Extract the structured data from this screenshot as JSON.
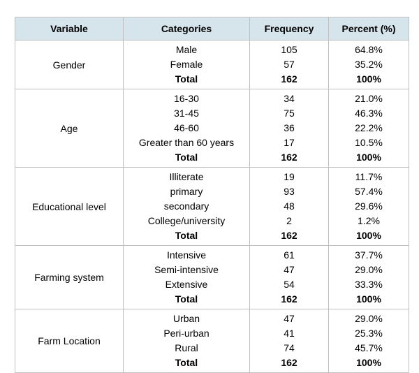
{
  "table": {
    "headers": [
      "Variable",
      "Categories",
      "Frequency",
      "Percent (%)"
    ],
    "groups": [
      {
        "variable": "Gender",
        "rows": [
          {
            "category": "Male",
            "frequency": "105",
            "percent": "64.8%"
          },
          {
            "category": "Female",
            "frequency": "57",
            "percent": "35.2%"
          },
          {
            "category": "Total",
            "frequency": "162",
            "percent": "100%",
            "total": true
          }
        ]
      },
      {
        "variable": "Age",
        "rows": [
          {
            "category": "16-30",
            "frequency": "34",
            "percent": "21.0%"
          },
          {
            "category": "31-45",
            "frequency": "75",
            "percent": "46.3%"
          },
          {
            "category": "46-60",
            "frequency": "36",
            "percent": "22.2%"
          },
          {
            "category": "Greater than 60 years",
            "frequency": "17",
            "percent": "10.5%"
          },
          {
            "category": "Total",
            "frequency": "162",
            "percent": "100%",
            "total": true
          }
        ]
      },
      {
        "variable": "Educational level",
        "rows": [
          {
            "category": "Illiterate",
            "frequency": "19",
            "percent": "11.7%"
          },
          {
            "category": "primary",
            "frequency": "93",
            "percent": "57.4%"
          },
          {
            "category": "secondary",
            "frequency": "48",
            "percent": "29.6%"
          },
          {
            "category": "College/university",
            "frequency": "2",
            "percent": "1.2%"
          },
          {
            "category": "Total",
            "frequency": "162",
            "percent": "100%",
            "total": true
          }
        ]
      },
      {
        "variable": "Farming system",
        "rows": [
          {
            "category": "Intensive",
            "frequency": "61",
            "percent": "37.7%"
          },
          {
            "category": "Semi-intensive",
            "frequency": "47",
            "percent": "29.0%"
          },
          {
            "category": "Extensive",
            "frequency": "54",
            "percent": "33.3%"
          },
          {
            "category": "Total",
            "frequency": "162",
            "percent": "100%",
            "total": true
          }
        ]
      },
      {
        "variable": "Farm  Location",
        "rows": [
          {
            "category": "Urban",
            "frequency": "47",
            "percent": "29.0%"
          },
          {
            "category": "Peri-urban",
            "frequency": "41",
            "percent": "25.3%"
          },
          {
            "category": "Rural",
            "frequency": "74",
            "percent": "45.7%"
          },
          {
            "category": "Total",
            "frequency": "162",
            "percent": "100%",
            "total": true
          }
        ]
      }
    ]
  },
  "colors": {
    "header_background": "#d6e4ec",
    "border": "#bfbfbf"
  }
}
